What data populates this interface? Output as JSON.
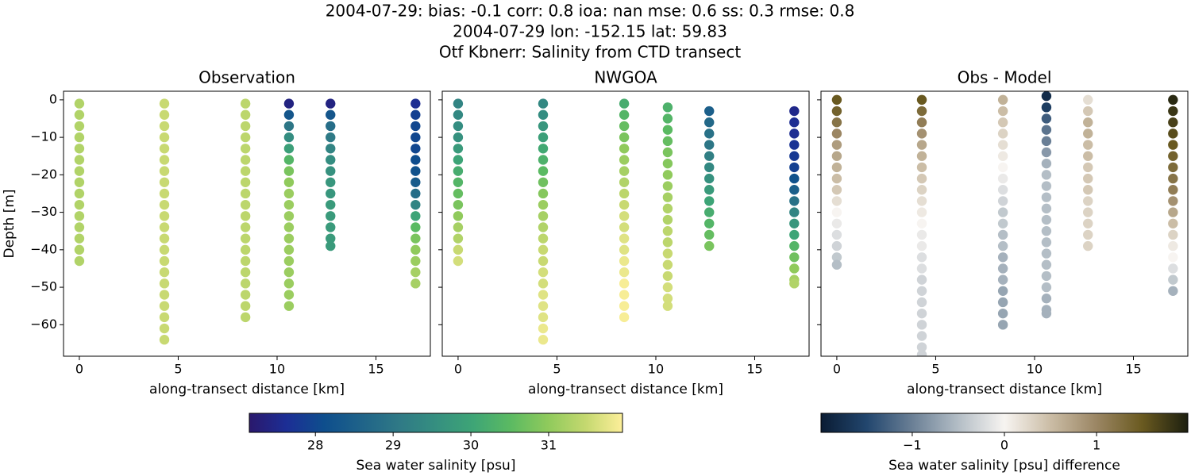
{
  "header": {
    "lines": [
      "2004-07-29: bias: -0.1  corr: 0.8  ioa: nan  mse: 0.6  ss: 0.3  rmse: 0.8",
      "2004-07-29 lon: -152.15 lat: 59.83",
      "Otf Kbnerr: Salinity from CTD transect"
    ]
  },
  "colorbars": [
    {
      "label": "Sea water salinity [psu]",
      "lim": [
        27.15,
        31.95
      ],
      "ticks": [
        28,
        29,
        30,
        31
      ],
      "colors": [
        "#2a186c",
        "#1c2e95",
        "#0e4e8d",
        "#1f6389",
        "#2f7986",
        "#358f80",
        "#3ea576",
        "#5bba62",
        "#8fca5c",
        "#c4d86f",
        "#fdef9a"
      ]
    },
    {
      "label": "Sea water salinity [psu] difference",
      "lim": [
        -1.99,
        1.99
      ],
      "ticks": [
        {
          "value": -1,
          "label": "−1"
        },
        0,
        1
      ],
      "colors": [
        "#0a1c33",
        "#22466e",
        "#6b8096",
        "#b4bec6",
        "#f7f4f1",
        "#cbbda6",
        "#9b8664",
        "#6a5a20",
        "#1c1f0f"
      ]
    }
  ],
  "chart_data": [
    {
      "type": "scatter",
      "title": "Observation",
      "xlabel": "along-transect distance [km]",
      "ylabel": "Depth [m]",
      "colorbar": 0,
      "xlim": [
        -0.8,
        17.75
      ],
      "ylim": [
        -68.4,
        2.3
      ],
      "xticks": [
        0,
        5,
        10,
        15
      ],
      "yticks": [
        0,
        {
          "value": -10,
          "label": "−10"
        },
        {
          "value": -20,
          "label": "−20"
        },
        {
          "value": -30,
          "label": "−30"
        },
        {
          "value": -40,
          "label": "−40"
        },
        {
          "value": -50,
          "label": "−50"
        },
        {
          "value": -60,
          "label": "−60"
        }
      ],
      "show_ytick_labels": true,
      "series": [
        {
          "x": 0,
          "y": [
            -1,
            -4,
            -7,
            -10,
            -13,
            -16,
            -19,
            -22,
            -25,
            -28,
            -31,
            -34,
            -37,
            -40,
            -43
          ],
          "values": [
            31.3,
            31.3,
            31.3,
            31.3,
            31.3,
            31.3,
            31.3,
            31.3,
            31.3,
            31.3,
            31.3,
            31.3,
            31.3,
            31.3,
            31.3
          ]
        },
        {
          "x": 4.3,
          "y": [
            -1,
            -4,
            -7,
            -10,
            -13,
            -16,
            -19,
            -22,
            -25,
            -28,
            -31,
            -34,
            -37,
            -40,
            -43,
            -46,
            -49,
            -52,
            -55,
            -58,
            -61,
            -64
          ],
          "values": [
            31.5,
            31.5,
            31.5,
            31.5,
            31.5,
            31.5,
            31.5,
            31.5,
            31.5,
            31.5,
            31.5,
            31.5,
            31.5,
            31.5,
            31.5,
            31.5,
            31.5,
            31.5,
            31.5,
            31.5,
            31.5,
            31.5
          ]
        },
        {
          "x": 8.4,
          "y": [
            -1,
            -4,
            -7,
            -10,
            -13,
            -16,
            -19,
            -22,
            -25,
            -28,
            -31,
            -34,
            -37,
            -40,
            -43,
            -46,
            -49,
            -52,
            -55,
            -58
          ],
          "values": [
            31.4,
            31.4,
            31.4,
            31.4,
            31.4,
            31.4,
            31.4,
            31.4,
            31.4,
            31.4,
            31.4,
            31.4,
            31.4,
            31.4,
            31.4,
            31.4,
            31.4,
            31.4,
            31.4,
            31.4
          ]
        },
        {
          "x": 10.6,
          "y": [
            -1,
            -4,
            -7,
            -10,
            -13,
            -16,
            -19,
            -22,
            -25,
            -28,
            -31,
            -34,
            -37,
            -40,
            -43,
            -46,
            -49,
            -52,
            -55
          ],
          "values": [
            27.4,
            28.3,
            29.0,
            29.5,
            29.9,
            30.4,
            30.8,
            31.0,
            31.1,
            31.1,
            31.1,
            31.1,
            31.1,
            31.1,
            31.1,
            31.1,
            31.1,
            31.1,
            31.1
          ]
        },
        {
          "x": 12.7,
          "y": [
            -1,
            -4,
            -7,
            -10,
            -13,
            -16,
            -19,
            -22,
            -25,
            -28,
            -31,
            -34,
            -37,
            -39
          ],
          "values": [
            27.4,
            28.3,
            28.8,
            29.1,
            29.3,
            29.5,
            29.6,
            29.7,
            29.7,
            29.8,
            29.8,
            29.8,
            29.8,
            29.8
          ]
        },
        {
          "x": 17,
          "y": [
            -1,
            -4,
            -7,
            -10,
            -13,
            -16,
            -19,
            -22,
            -25,
            -28,
            -31,
            -34,
            -37,
            -40,
            -43,
            -46,
            -49
          ],
          "values": [
            27.6,
            27.9,
            28.0,
            28.0,
            28.0,
            28.1,
            28.2,
            28.4,
            28.8,
            29.3,
            30.0,
            30.5,
            30.8,
            31.0,
            31.1,
            31.2,
            31.2
          ]
        }
      ]
    },
    {
      "type": "scatter",
      "title": "NWGOA",
      "xlabel": "along-transect distance [km]",
      "colorbar": 0,
      "xlim": [
        -0.8,
        17.75
      ],
      "ylim": [
        -68.4,
        2.3
      ],
      "xticks": [
        0,
        5,
        10,
        15
      ],
      "yticks": [
        0,
        -10,
        -20,
        -30,
        -40,
        -50,
        -60
      ],
      "show_ytick_labels": false,
      "series": [
        {
          "x": 0,
          "y": [
            -1,
            -4,
            -7,
            -10,
            -13,
            -16,
            -19,
            -22,
            -25,
            -28,
            -31,
            -34,
            -37,
            -40,
            -43
          ],
          "values": [
            29.3,
            29.4,
            29.5,
            29.6,
            29.8,
            30.0,
            30.2,
            30.4,
            30.6,
            30.8,
            31.0,
            31.2,
            31.3,
            31.5,
            31.6
          ]
        },
        {
          "x": 4.3,
          "y": [
            -1,
            -4,
            -7,
            -10,
            -13,
            -16,
            -19,
            -22,
            -25,
            -28,
            -31,
            -34,
            -37,
            -40,
            -43,
            -46,
            -49,
            -52,
            -55,
            -58,
            -61,
            -64
          ],
          "values": [
            29.4,
            29.5,
            29.7,
            29.9,
            30.1,
            30.3,
            30.5,
            30.7,
            30.9,
            31.1,
            31.2,
            31.3,
            31.4,
            31.5,
            31.5,
            31.6,
            31.6,
            31.7,
            31.7,
            31.7,
            31.8,
            31.8
          ]
        },
        {
          "x": 8.4,
          "y": [
            -1,
            -4,
            -7,
            -10,
            -13,
            -16,
            -19,
            -22,
            -25,
            -28,
            -31,
            -34,
            -37,
            -40,
            -43,
            -46,
            -49,
            -52,
            -55,
            -58
          ],
          "values": [
            30.2,
            30.4,
            30.6,
            30.8,
            31.0,
            31.1,
            31.2,
            31.3,
            31.4,
            31.5,
            31.6,
            31.6,
            31.7,
            31.7,
            31.8,
            31.8,
            31.9,
            31.9,
            31.9,
            31.9
          ]
        },
        {
          "x": 10.6,
          "y": [
            -2,
            -5,
            -8,
            -11,
            -14,
            -17,
            -20,
            -23,
            -26,
            -29,
            -32,
            -35,
            -38,
            -41,
            -44,
            -47,
            -50,
            -53,
            -55
          ],
          "values": [
            30.3,
            30.4,
            30.5,
            30.6,
            30.8,
            30.9,
            31.0,
            31.1,
            31.2,
            31.3,
            31.3,
            31.4,
            31.4,
            31.5,
            31.5,
            31.5,
            31.6,
            31.6,
            31.6
          ]
        },
        {
          "x": 12.7,
          "y": [
            -3,
            -6,
            -9,
            -12,
            -15,
            -18,
            -21,
            -24,
            -27,
            -30,
            -33,
            -36,
            -39
          ],
          "values": [
            28.5,
            28.7,
            28.9,
            29.0,
            29.2,
            29.4,
            29.6,
            29.8,
            30.0,
            30.2,
            30.4,
            30.6,
            30.8
          ]
        },
        {
          "x": 17,
          "y": [
            -3,
            -6,
            -9,
            -12,
            -15,
            -18,
            -21,
            -24,
            -27,
            -30,
            -33,
            -36,
            -39,
            -42,
            -45,
            -48,
            -49
          ],
          "values": [
            27.5,
            27.6,
            27.6,
            27.7,
            27.8,
            27.9,
            28.2,
            28.5,
            28.9,
            29.3,
            29.7,
            30.0,
            30.4,
            30.7,
            31.0,
            31.2,
            31.3
          ]
        }
      ]
    },
    {
      "type": "scatter",
      "title": "Obs - Model",
      "xlabel": "along-transect distance [km]",
      "colorbar": 1,
      "xlim": [
        -0.8,
        17.75
      ],
      "ylim": [
        -68.4,
        2.3
      ],
      "xticks": [
        0,
        5,
        10,
        15
      ],
      "yticks": [
        0,
        -10,
        -20,
        -30,
        -40,
        -50,
        -60
      ],
      "show_ytick_labels": false,
      "series": [
        {
          "x": 0,
          "y": [
            0,
            -3,
            -6,
            -9,
            -12,
            -15,
            -18,
            -21,
            -24,
            -27,
            -30,
            -33,
            -36,
            -39,
            -42,
            -44
          ],
          "values": [
            1.5,
            1.4,
            1.2,
            1.0,
            0.8,
            0.7,
            0.6,
            0.5,
            0.4,
            0.2,
            0.0,
            -0.1,
            -0.2,
            -0.3,
            -0.4,
            -0.5
          ]
        },
        {
          "x": 4.3,
          "y": [
            0,
            -3,
            -6,
            -9,
            -12,
            -15,
            -18,
            -21,
            -24,
            -27,
            -30,
            -33,
            -36,
            -39,
            -42,
            -45,
            -48,
            -51,
            -54,
            -57,
            -60,
            -63,
            -66,
            -68
          ],
          "values": [
            1.5,
            1.3,
            1.1,
            0.9,
            0.7,
            0.6,
            0.5,
            0.4,
            0.3,
            0.2,
            0.1,
            0.0,
            -0.1,
            -0.1,
            -0.2,
            -0.2,
            -0.3,
            -0.3,
            -0.3,
            -0.3,
            -0.3,
            -0.3,
            -0.3,
            -0.3
          ]
        },
        {
          "x": 8.4,
          "y": [
            0,
            -3,
            -6,
            -9,
            -12,
            -15,
            -18,
            -21,
            -24,
            -27,
            -30,
            -33,
            -36,
            -39,
            -42,
            -45,
            -48,
            -51,
            -54,
            -57,
            -60
          ],
          "values": [
            0.6,
            0.5,
            0.4,
            0.3,
            0.2,
            0.1,
            0.0,
            -0.1,
            -0.2,
            -0.3,
            -0.4,
            -0.4,
            -0.5,
            -0.5,
            -0.6,
            -0.6,
            -0.6,
            -0.7,
            -0.7,
            -0.7,
            -0.7
          ]
        },
        {
          "x": 10.6,
          "y": [
            1,
            -2,
            -5,
            -8,
            -11,
            -14,
            -17,
            -20,
            -23,
            -26,
            -29,
            -32,
            -35,
            -38,
            -41,
            -44,
            -47,
            -50,
            -53,
            -56,
            -57
          ],
          "values": [
            -1.8,
            -1.6,
            -1.3,
            -1.1,
            -1.0,
            -0.8,
            -0.6,
            -0.5,
            -0.5,
            -0.5,
            -0.5,
            -0.5,
            -0.5,
            -0.5,
            -0.5,
            -0.5,
            -0.5,
            -0.5,
            -0.6,
            -0.6,
            -0.6
          ]
        },
        {
          "x": 12.7,
          "y": [
            0,
            -3,
            -6,
            -9,
            -12,
            -15,
            -18,
            -21,
            -24,
            -27,
            -30,
            -33,
            -36,
            -39
          ],
          "values": [
            0.2,
            0.4,
            0.6,
            0.6,
            0.5,
            0.5,
            0.4,
            0.4,
            0.4,
            0.3,
            0.3,
            0.3,
            0.3,
            0.3
          ]
        },
        {
          "x": 17,
          "y": [
            0,
            -3,
            -6,
            -9,
            -12,
            -15,
            -18,
            -21,
            -24,
            -27,
            -30,
            -33,
            -36,
            -39,
            -42,
            -45,
            -48,
            -51
          ],
          "values": [
            1.9,
            1.8,
            1.7,
            1.6,
            1.5,
            1.4,
            1.3,
            1.2,
            1.1,
            0.9,
            0.7,
            0.5,
            0.3,
            0.1,
            0.0,
            -0.2,
            -0.4,
            -0.6
          ]
        }
      ]
    }
  ]
}
